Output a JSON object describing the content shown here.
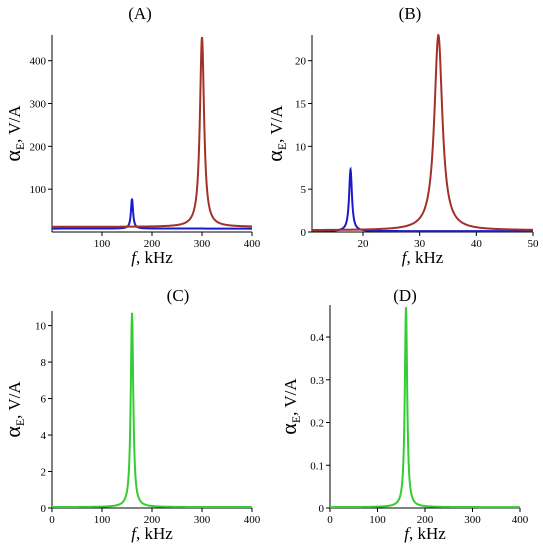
{
  "figure": {
    "panels": [
      {
        "label": "(A)"
      },
      {
        "label": "(B)"
      },
      {
        "label": "(C)"
      },
      {
        "label": "(D)"
      }
    ]
  },
  "chart_data": [
    {
      "type": "line",
      "panel_label": "(A)",
      "xlabel": "f, kHz",
      "xlabel_italic": "f",
      "xlabel_rest": ", kHz",
      "ylabel_main": "α",
      "ylabel_sub": "E",
      "ylabel_rest": ", V/A",
      "xlim": [
        0,
        400
      ],
      "ylim": [
        0,
        460
      ],
      "xticks": [
        100,
        200,
        300,
        400
      ],
      "yticks": [
        100,
        200,
        300,
        400
      ],
      "series": [
        {
          "color": "#1a1acc",
          "peak_x": 160,
          "peak_y": 78,
          "base_y": 8,
          "gamma": 2.5
        },
        {
          "color": "#a0322a",
          "peak_x": 300,
          "peak_y": 455,
          "base_y": 12,
          "gamma": 5
        }
      ]
    },
    {
      "type": "line",
      "panel_label": "(B)",
      "xlabel": "f, kHz",
      "xlabel_italic": "f",
      "xlabel_rest": ", kHz",
      "ylabel_main": "α",
      "ylabel_sub": "E",
      "ylabel_rest": ", V/A",
      "xlim": [
        11,
        50
      ],
      "ylim": [
        0,
        23
      ],
      "xticks": [
        20,
        30,
        40,
        50
      ],
      "yticks": [
        0,
        5,
        10,
        15,
        20
      ],
      "series": [
        {
          "color": "#1a1acc",
          "peak_x": 17.8,
          "peak_y": 7.3,
          "base_y": 0.1,
          "gamma": 0.3
        },
        {
          "color": "#a0322a",
          "peak_x": 33.3,
          "peak_y": 23,
          "base_y": 0.2,
          "gamma": 0.85
        }
      ]
    },
    {
      "type": "line",
      "panel_label": "(C)",
      "xlabel": "f, kHz",
      "xlabel_italic": "f",
      "xlabel_rest": ", kHz",
      "ylabel_main": "α",
      "ylabel_sub": "E",
      "ylabel_rest": ", V/A",
      "xlim": [
        0,
        400
      ],
      "ylim": [
        0,
        10.8
      ],
      "xticks": [
        0,
        100,
        200,
        300,
        400
      ],
      "yticks": [
        0,
        2,
        4,
        6,
        8,
        10
      ],
      "series": [
        {
          "color": "#33cc33",
          "peak_x": 160,
          "peak_y": 10.7,
          "base_y": 0.05,
          "gamma": 3
        }
      ]
    },
    {
      "type": "line",
      "panel_label": "(D)",
      "xlabel": "f, kHz",
      "xlabel_italic": "f",
      "xlabel_rest": ", kHz",
      "ylabel_main": "α",
      "ylabel_sub": "E",
      "ylabel_rest": ", V/A",
      "xlim": [
        0,
        400
      ],
      "ylim": [
        0,
        0.475
      ],
      "xticks": [
        0,
        100,
        200,
        300,
        400
      ],
      "yticks": [
        0,
        0.1,
        0.2,
        0.3,
        0.4
      ],
      "series": [
        {
          "color": "#33cc33",
          "peak_x": 160,
          "peak_y": 0.47,
          "base_y": 0.002,
          "gamma": 3
        }
      ]
    }
  ]
}
